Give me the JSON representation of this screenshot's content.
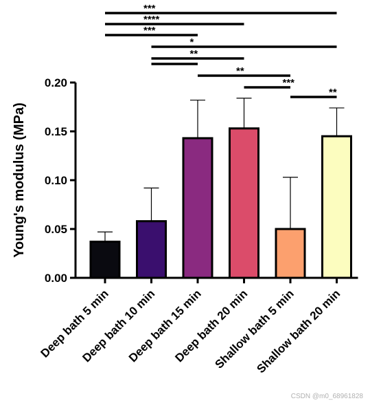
{
  "chart_data": {
    "type": "bar",
    "categories": [
      "Deep bath 5 min",
      "Deep bath 10 min",
      "Deep bath 15 min",
      "Deep bath 20 min",
      "Shallow bath 5 min",
      "Shallow bath 20 min"
    ],
    "values": [
      0.037,
      0.058,
      0.143,
      0.153,
      0.05,
      0.145
    ],
    "error_upper": [
      0.047,
      0.092,
      0.182,
      0.184,
      0.103,
      0.174
    ],
    "colors": [
      "#0a0a10",
      "#3a0f6e",
      "#8a2a80",
      "#db4c6a",
      "#fca06e",
      "#fcfdbf"
    ],
    "ylabel": "Young's modulus (MPa)",
    "xlabel": "",
    "ylim": [
      0,
      0.2
    ],
    "yticks": [
      "0.00",
      "0.05",
      "0.10",
      "0.15",
      "0.20"
    ],
    "grid": false,
    "significance": [
      {
        "from": 0,
        "to": 5,
        "label": "***"
      },
      {
        "from": 0,
        "to": 3,
        "label": "****"
      },
      {
        "from": 0,
        "to": 2,
        "label": "***"
      },
      {
        "from": 1,
        "to": 5,
        "label": "*"
      },
      {
        "from": 1,
        "to": 3,
        "label": "**"
      },
      {
        "from": 1,
        "to": 2,
        "label": ""
      },
      {
        "from": 2,
        "to": 4,
        "label": "**"
      },
      {
        "from": 3,
        "to": 4,
        "label": "***"
      },
      {
        "from": 4,
        "to": 5,
        "label": "**"
      }
    ]
  },
  "watermark": "CSDN @m0_68961828"
}
